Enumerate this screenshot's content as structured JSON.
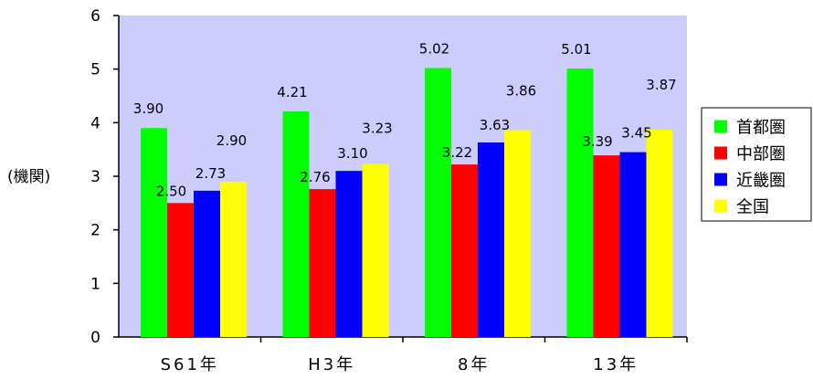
{
  "chart_data": {
    "type": "bar",
    "title": "",
    "ylabel": "(機関)",
    "xlabel": "",
    "ylim": [
      0,
      6
    ],
    "yticks": [
      "0",
      "1",
      "2",
      "3",
      "4",
      "5",
      "6"
    ],
    "categories": [
      "S61年",
      "H3年",
      "8年",
      "13年"
    ],
    "series": [
      {
        "name": "首都圏",
        "color": "#00ff00",
        "values": [
          3.9,
          4.21,
          5.02,
          5.01
        ],
        "labels": [
          "3.90",
          "4.21",
          "5.02",
          "5.01"
        ]
      },
      {
        "name": "中部圏",
        "color": "#ff0000",
        "values": [
          2.5,
          2.76,
          3.22,
          3.39
        ],
        "labels": [
          "2.50",
          "2.76",
          "3.22",
          "3.39"
        ]
      },
      {
        "name": "近畿圏",
        "color": "#0000ff",
        "values": [
          2.73,
          3.1,
          3.63,
          3.45
        ],
        "labels": [
          "2.73",
          "3.10",
          "3.63",
          "3.45"
        ]
      },
      {
        "name": "全国",
        "color": "#ffff00",
        "values": [
          2.9,
          3.23,
          3.86,
          3.87
        ],
        "labels": [
          "2.90",
          "3.23",
          "3.86",
          "3.87"
        ]
      }
    ],
    "plot_background": "#ccccff",
    "legend_position": "right",
    "grid": false
  }
}
